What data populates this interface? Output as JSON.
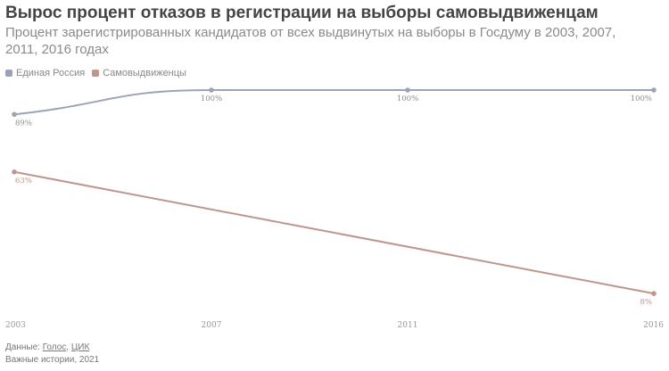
{
  "title": "Вырос процент отказов в регистрации на выборы самовыдвиженцам",
  "subtitle": "Процент зарегистрированных кандидатов от всех выдвинутых на выборы в Госдуму в 2003, 2007, 2011, 2016 годах",
  "source": {
    "prefix": "Данные: ",
    "link1": "Голос",
    "separator": ", ",
    "link2": "ЦИК",
    "credit": "Важные истории, 2021"
  },
  "chart_data": {
    "type": "line",
    "x": [
      "2003",
      "2007",
      "2011",
      "2016"
    ],
    "ylim": [
      0,
      100
    ],
    "grid": false,
    "legend": "top-left",
    "series": [
      {
        "name": "Единая Россия",
        "values": [
          89,
          100,
          100,
          100
        ],
        "labels": [
          "89%",
          "100%",
          "100%",
          "100%"
        ],
        "color": "#9aa3b8"
      },
      {
        "name": "Самовыдвиженцы",
        "values": [
          63,
          null,
          null,
          8
        ],
        "labels": [
          "63%",
          "",
          "",
          "8%"
        ],
        "color": "#bf958c"
      }
    ]
  }
}
